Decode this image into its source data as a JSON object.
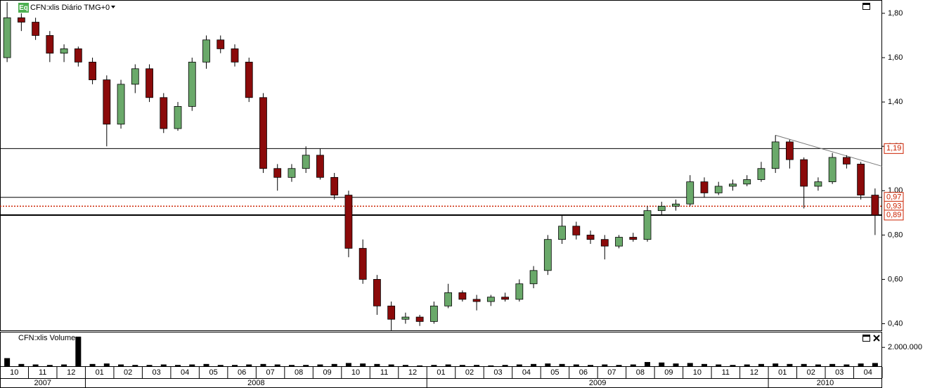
{
  "chart_data": {
    "type": "candlestick",
    "title": "CFN:xlis Diário TMG+0",
    "icon_label": "Eq",
    "xlim": [
      0,
      31
    ],
    "x": [
      0.25,
      0.75,
      1.25,
      1.75,
      2.25,
      2.75,
      3.25,
      3.75,
      4.25,
      4.75,
      5.25,
      5.75,
      6.25,
      6.75,
      7.25,
      7.75,
      8.25,
      8.75,
      9.25,
      9.75,
      10.25,
      10.75,
      11.25,
      11.75,
      12.25,
      12.75,
      13.25,
      13.75,
      14.25,
      14.75,
      15.25,
      15.75,
      16.25,
      16.75,
      17.25,
      17.75,
      18.25,
      18.75,
      19.25,
      19.75,
      20.25,
      20.75,
      21.25,
      21.75,
      22.25,
      22.75,
      23.25,
      23.75,
      24.25,
      24.75,
      25.25,
      25.75,
      26.25,
      26.75,
      27.25,
      27.75,
      28.25,
      28.75,
      29.25,
      29.75,
      30.25,
      30.75
    ],
    "open": [
      1.6,
      1.78,
      1.76,
      1.7,
      1.62,
      1.64,
      1.58,
      1.5,
      1.3,
      1.48,
      1.55,
      1.42,
      1.28,
      1.38,
      1.58,
      1.68,
      1.64,
      1.58,
      1.42,
      1.1,
      1.06,
      1.1,
      1.16,
      1.06,
      0.98,
      0.74,
      0.6,
      0.48,
      0.42,
      0.43,
      0.41,
      0.48,
      0.54,
      0.51,
      0.5,
      0.52,
      0.51,
      0.58,
      0.64,
      0.78,
      0.84,
      0.8,
      0.78,
      0.75,
      0.79,
      0.78,
      0.91,
      0.93,
      0.94,
      1.04,
      0.99,
      1.02,
      1.03,
      1.05,
      1.1,
      1.22,
      1.14,
      1.02,
      1.04,
      1.15,
      1.12,
      0.98
    ],
    "high": [
      1.85,
      1.8,
      1.78,
      1.72,
      1.66,
      1.65,
      1.6,
      1.52,
      1.5,
      1.57,
      1.57,
      1.44,
      1.4,
      1.6,
      1.7,
      1.7,
      1.66,
      1.6,
      1.44,
      1.12,
      1.12,
      1.2,
      1.19,
      1.08,
      1.0,
      0.78,
      0.62,
      0.5,
      0.45,
      0.44,
      0.5,
      0.58,
      0.55,
      0.53,
      0.53,
      0.54,
      0.6,
      0.66,
      0.8,
      0.89,
      0.86,
      0.82,
      0.8,
      0.8,
      0.81,
      0.93,
      0.95,
      0.96,
      1.07,
      1.06,
      1.04,
      1.05,
      1.07,
      1.13,
      1.25,
      1.23,
      1.15,
      1.06,
      1.17,
      1.16,
      1.13,
      1.01
    ],
    "low": [
      1.58,
      1.72,
      1.68,
      1.58,
      1.58,
      1.56,
      1.48,
      1.2,
      1.28,
      1.44,
      1.4,
      1.26,
      1.27,
      1.36,
      1.55,
      1.62,
      1.56,
      1.4,
      1.08,
      1.0,
      1.04,
      1.08,
      1.05,
      0.96,
      0.7,
      0.58,
      0.44,
      0.37,
      0.4,
      0.39,
      0.4,
      0.47,
      0.5,
      0.46,
      0.48,
      0.5,
      0.5,
      0.56,
      0.62,
      0.76,
      0.78,
      0.76,
      0.69,
      0.74,
      0.77,
      0.77,
      0.89,
      0.91,
      0.93,
      0.97,
      0.98,
      1.0,
      1.02,
      1.04,
      1.08,
      1.1,
      0.92,
      1.0,
      1.03,
      1.1,
      0.96,
      0.8
    ],
    "close": [
      1.78,
      1.76,
      1.7,
      1.62,
      1.64,
      1.58,
      1.5,
      1.3,
      1.48,
      1.55,
      1.42,
      1.28,
      1.38,
      1.58,
      1.68,
      1.64,
      1.58,
      1.42,
      1.1,
      1.06,
      1.1,
      1.16,
      1.06,
      0.98,
      0.74,
      0.6,
      0.48,
      0.42,
      0.43,
      0.41,
      0.48,
      0.54,
      0.51,
      0.5,
      0.52,
      0.51,
      0.58,
      0.64,
      0.78,
      0.84,
      0.8,
      0.78,
      0.75,
      0.79,
      0.78,
      0.91,
      0.93,
      0.94,
      1.04,
      0.99,
      1.02,
      1.03,
      1.05,
      1.1,
      1.22,
      1.14,
      1.02,
      1.04,
      1.15,
      1.12,
      0.98,
      0.89
    ],
    "up_color": "#6aa96a",
    "down_color": "#8b0a0a",
    "ylim": [
      0.37,
      1.86
    ],
    "yticks": [
      {
        "value": 0.4,
        "label": "0,40"
      },
      {
        "value": 0.6,
        "label": "0,60"
      },
      {
        "value": 0.8,
        "label": "0,80"
      },
      {
        "value": 1.0,
        "label": "1,00"
      },
      {
        "value": 1.2,
        "label": "1,20"
      },
      {
        "value": 1.4,
        "label": "1,40"
      },
      {
        "value": 1.6,
        "label": "1,60"
      },
      {
        "value": 1.8,
        "label": "1,80"
      }
    ],
    "levels": [
      {
        "value": 1.19,
        "label": "1,19",
        "style": "solid"
      },
      {
        "value": 0.97,
        "label": "0,97",
        "style": "solid"
      },
      {
        "value": 0.93,
        "label": "0,93",
        "style": "dotted"
      },
      {
        "value": 0.89,
        "label": "0,89",
        "style": "thick"
      }
    ],
    "level_label_color": "#cc2200",
    "trendline": {
      "x": [
        27.25,
        31
      ],
      "y": [
        1.25,
        1.11
      ]
    },
    "months": [
      "10",
      "11",
      "12",
      "01",
      "02",
      "03",
      "04",
      "05",
      "06",
      "07",
      "08",
      "09",
      "10",
      "11",
      "12",
      "01",
      "02",
      "03",
      "04",
      "05",
      "06",
      "07",
      "08",
      "09",
      "10",
      "11",
      "12",
      "01",
      "02",
      "03",
      "04"
    ],
    "years": [
      "2007",
      "2008",
      "2009",
      "2010"
    ],
    "volume": {
      "title": "CFN:xlis Volume",
      "color": "#000000",
      "ylim": [
        0,
        3600000
      ],
      "yticks": [
        {
          "value": 2000000,
          "label": "2.000.000"
        }
      ],
      "values": [
        900000,
        300000,
        250000,
        200000,
        250000,
        3100000,
        300000,
        350000,
        250000,
        200000,
        200000,
        250000,
        200000,
        250000,
        300000,
        200000,
        200000,
        250000,
        300000,
        250000,
        200000,
        200000,
        250000,
        300000,
        400000,
        350000,
        300000,
        250000,
        200000,
        150000,
        200000,
        250000,
        200000,
        200000,
        150000,
        200000,
        250000,
        300000,
        350000,
        300000,
        250000,
        200000,
        250000,
        200000,
        250000,
        500000,
        450000,
        350000,
        400000,
        300000,
        250000,
        200000,
        250000,
        300000,
        350000,
        300000,
        300000,
        250000,
        300000,
        250000,
        350000,
        400000
      ]
    }
  }
}
